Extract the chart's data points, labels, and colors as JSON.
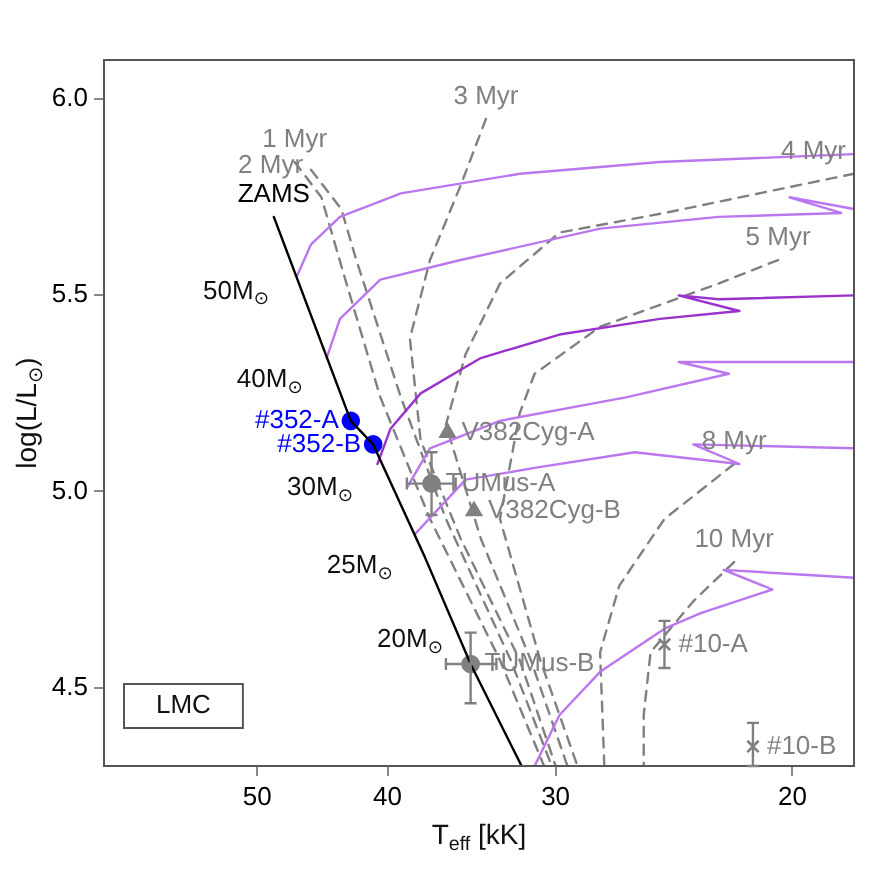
{
  "chart_data": {
    "type": "line",
    "xlabel": "T$_{eff}$ [kK]",
    "ylabel": "log(L/L$_{⊙}$)",
    "log": "x",
    "xlim": [
      65,
      18
    ],
    "ylim": [
      4.3,
      6.1
    ],
    "xticks": [
      50,
      40,
      30,
      20
    ],
    "yticks": [
      {
        "value": 4.5,
        "label": "4.5"
      },
      {
        "value": 5.0,
        "label": "5.0"
      },
      {
        "value": 5.5,
        "label": "5.5"
      },
      {
        "value": 6.0,
        "label": "6.0"
      }
    ],
    "grid": false,
    "legend": false,
    "series": [
      {
        "name": "ZAMS",
        "color": "#000000",
        "line_style": "solid",
        "x": [
          48.6,
          42.6,
          41.0,
          37.5,
          34.7,
          31.8
        ],
        "values": [
          5.7,
          5.18,
          5.12,
          4.83,
          4.56,
          4.3
        ]
      },
      {
        "type": "line",
        "color": "#bb77ee",
        "line_style": "solid",
        "x": [
          46.7,
          45.6,
          43.4,
          39.1,
          31.9,
          25.1,
          18.0
        ],
        "values": [
          5.55,
          5.63,
          5.7,
          5.76,
          5.81,
          5.84,
          5.86
        ]
      },
      {
        "type": "line",
        "color": "#bb77ee",
        "line_style": "solid",
        "x": [
          44.4,
          43.4,
          40.5,
          35.3,
          27.8,
          22.7,
          18.4,
          20.1,
          18.0
        ],
        "values": [
          5.34,
          5.44,
          5.54,
          5.59,
          5.67,
          5.7,
          5.71,
          5.75,
          5.72
        ]
      },
      {
        "type": "line",
        "color": "#9933cc",
        "line_style": "solid",
        "x": [
          40.7,
          39.8,
          37.8,
          34.1,
          29.8,
          25.1,
          21.9,
          24.3,
          22.7,
          18.0
        ],
        "values": [
          5.07,
          5.16,
          5.25,
          5.34,
          5.4,
          5.44,
          5.46,
          5.5,
          5.49,
          5.5
        ]
      },
      {
        "type": "line",
        "color": "#bb77ee",
        "line_style": "solid",
        "x": [
          38.7,
          37.2,
          33.0,
          26.6,
          22.3,
          24.3,
          18.0
        ],
        "values": [
          5.01,
          5.11,
          5.18,
          5.24,
          5.3,
          5.33,
          5.33
        ]
      },
      {
        "type": "line",
        "color": "#bb77ee",
        "line_style": "solid",
        "x": [
          38.2,
          35.0,
          31.1,
          26.2,
          21.9,
          23.7,
          18.0
        ],
        "values": [
          4.89,
          5.03,
          5.06,
          5.1,
          5.07,
          5.12,
          5.11
        ]
      },
      {
        "type": "line",
        "color": "#bb77ee",
        "line_style": "solid",
        "x": [
          31.1,
          29.8,
          27.8,
          24.9,
          23.4,
          20.7,
          22.5,
          18.0
        ],
        "values": [
          4.3,
          4.43,
          4.54,
          4.65,
          4.69,
          4.75,
          4.8,
          4.78
        ]
      },
      {
        "type": "line",
        "name": "1 Myr",
        "color": "#808080",
        "line_style": "dashed",
        "x": [
          46.9,
          44.8,
          43.0,
          40.5,
          37.2,
          33.0,
          30.6
        ],
        "values": [
          5.84,
          5.75,
          5.54,
          5.24,
          4.93,
          4.57,
          4.3
        ]
      },
      {
        "type": "line",
        "name": "2 Myr",
        "color": "#808080",
        "line_style": "dashed",
        "x": [
          45.6,
          43.3,
          42.2,
          39.1,
          36.2,
          32.4,
          30.2
        ],
        "values": [
          5.82,
          5.72,
          5.59,
          5.24,
          4.93,
          4.57,
          4.3
        ]
      },
      {
        "type": "line",
        "name": "3 Myr",
        "color": "#808080",
        "line_style": "dashed",
        "x": [
          33.8,
          35.3,
          37.2,
          38.5,
          37.8,
          35.3,
          31.9,
          30.0
        ],
        "values": [
          5.95,
          5.78,
          5.59,
          5.39,
          5.13,
          4.88,
          4.57,
          4.3
        ]
      },
      {
        "type": "line",
        "name": "4 Myr",
        "color": "#808080",
        "line_style": "dashed",
        "x": [
          18.0,
          24.9,
          29.8,
          33.0,
          35.0,
          36.2,
          34.1,
          31.3,
          29.4
        ],
        "values": [
          5.81,
          5.71,
          5.66,
          5.53,
          5.35,
          5.17,
          4.88,
          4.57,
          4.3
        ]
      },
      {
        "type": "line",
        "name": "5 Myr",
        "color": "#808080",
        "line_style": "dashed",
        "x": [
          20.5,
          22.7,
          27.8,
          31.1,
          31.9,
          33.0,
          30.8,
          28.9
        ],
        "values": [
          5.59,
          5.53,
          5.42,
          5.3,
          5.2,
          4.93,
          4.57,
          4.3
        ]
      },
      {
        "type": "line",
        "name": "8 Myr",
        "color": "#808080",
        "line_style": "dashed",
        "x": [
          22.1,
          24.9,
          26.9,
          27.8,
          27.6
        ],
        "values": [
          5.07,
          4.93,
          4.76,
          4.59,
          4.3
        ]
      },
      {
        "type": "line",
        "name": "10 Myr",
        "color": "#808080",
        "line_style": "dashed",
        "x": [
          22.1,
          23.7,
          25.5,
          25.8,
          25.8
        ],
        "values": [
          4.82,
          4.72,
          4.59,
          4.43,
          4.3
        ]
      },
      {
        "type": "scatter",
        "name": "#352-A",
        "color": "#0000ff",
        "marker": "circle",
        "x": [
          42.6
        ],
        "values": [
          5.18
        ]
      },
      {
        "type": "scatter",
        "name": "#352-B",
        "color": "#0000ff",
        "marker": "circle",
        "x": [
          41.0
        ],
        "values": [
          5.12
        ]
      },
      {
        "type": "scatter",
        "name": "TUMus-A",
        "color": "#808080",
        "marker": "circle",
        "x": [
          37.1
        ],
        "values": [
          5.02
        ],
        "errors": [
          [
            4.94,
            5.1
          ]
        ],
        "xerrors": [
          [
            35.6,
            38.7
          ]
        ]
      },
      {
        "type": "scatter",
        "name": "V382Cyg-A",
        "color": "#808080",
        "marker": "triangle",
        "x": [
          36.1
        ],
        "values": [
          5.15
        ]
      },
      {
        "type": "scatter",
        "name": "V382Cyg-B",
        "color": "#808080",
        "marker": "triangle",
        "x": [
          34.5
        ],
        "values": [
          4.95
        ]
      },
      {
        "type": "scatter",
        "name": "TUMus-B",
        "color": "#808080",
        "marker": "circle",
        "x": [
          34.7
        ],
        "values": [
          4.56
        ],
        "errors": [
          [
            4.46,
            4.64
          ]
        ],
        "xerrors": [
          [
            33.2,
            36.2
          ]
        ]
      },
      {
        "type": "scatter",
        "name": "#10-A",
        "color": "#808080",
        "marker": "cross",
        "x": [
          24.9
        ],
        "values": [
          4.61
        ],
        "errors": [
          [
            4.55,
            4.67
          ]
        ]
      },
      {
        "type": "scatter",
        "name": "#10-B",
        "color": "#808080",
        "marker": "cross",
        "x": [
          21.4
        ],
        "values": [
          4.35
        ],
        "errors": [
          [
            4.3,
            4.41
          ]
        ]
      }
    ],
    "annotations": [
      "50M$_{⊙}$",
      "40M$_{⊙}$",
      "30M$_{⊙}$",
      "25M$_{⊙}$",
      "20M$_{⊙}$",
      "LMC"
    ]
  }
}
